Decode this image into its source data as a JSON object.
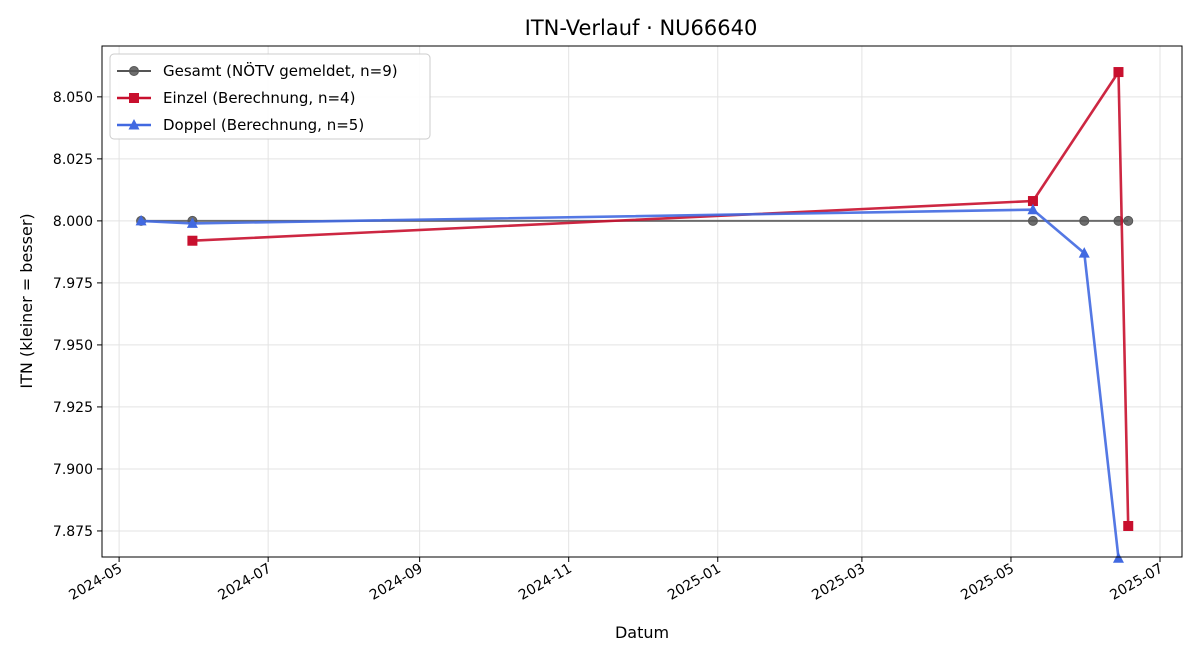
{
  "chart_data": {
    "type": "line",
    "title": "ITN-Verlauf · NU66640",
    "xlabel": "Datum",
    "ylabel": "ITN  (kleiner = besser)",
    "x_axis": {
      "kind": "date",
      "range": [
        "2024-04-24",
        "2025-07-10"
      ],
      "ticks": [
        "2024-05-01",
        "2024-07-01",
        "2024-09-01",
        "2024-11-01",
        "2025-01-01",
        "2025-03-01",
        "2025-05-01",
        "2025-07-01"
      ],
      "tick_labels": [
        "2024-05",
        "2024-07",
        "2024-09",
        "2024-11",
        "2025-01",
        "2025-03",
        "2025-05",
        "2025-07"
      ]
    },
    "y_axis": {
      "range": [
        7.8645,
        8.0705
      ],
      "ticks": [
        7.875,
        7.9,
        7.925,
        7.95,
        7.975,
        8.0,
        8.025,
        8.05
      ],
      "tick_labels": [
        "7.875",
        "7.900",
        "7.925",
        "7.950",
        "7.975",
        "8.000",
        "8.025",
        "8.050"
      ]
    },
    "grid": true,
    "legend_position": "top-left",
    "series": [
      {
        "name": "Gesamt (NÖTV gemeldet, n=9)",
        "color": "#555555",
        "marker": "circle",
        "points": [
          {
            "x": "2024-05-10",
            "y": 8.0
          },
          {
            "x": "2024-05-31",
            "y": 8.0
          },
          {
            "x": "2025-05-10",
            "y": 8.0
          },
          {
            "x": "2025-05-31",
            "y": 8.0
          },
          {
            "x": "2025-06-14",
            "y": 8.0
          },
          {
            "x": "2025-06-18",
            "y": 8.0
          }
        ]
      },
      {
        "name": "Einzel (Berechnung, n=4)",
        "color": "#c8102e",
        "marker": "square",
        "points": [
          {
            "x": "2024-05-31",
            "y": 7.992
          },
          {
            "x": "2025-05-10",
            "y": 8.008
          },
          {
            "x": "2025-06-14",
            "y": 8.06
          },
          {
            "x": "2025-06-18",
            "y": 7.877
          }
        ]
      },
      {
        "name": "Doppel (Berechnung, n=5)",
        "color": "#4169e1",
        "marker": "triangle",
        "points": [
          {
            "x": "2024-05-10",
            "y": 8.0
          },
          {
            "x": "2024-05-31",
            "y": 7.999
          },
          {
            "x": "2025-05-10",
            "y": 8.0045
          },
          {
            "x": "2025-05-31",
            "y": 7.987
          },
          {
            "x": "2025-06-14",
            "y": 7.864
          }
        ]
      }
    ]
  }
}
